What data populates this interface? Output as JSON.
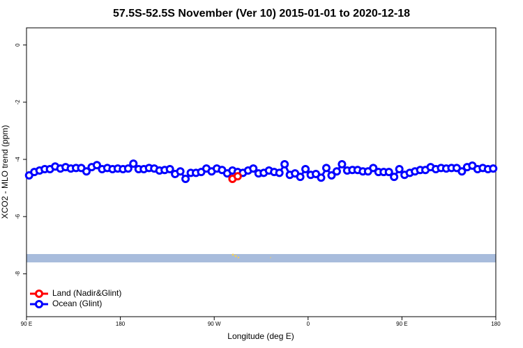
{
  "chart_data": {
    "type": "line",
    "title": "57.5S-52.5S November (Ver 10)   2015-01-01 to 2020-12-18",
    "x_label": "Longitude (deg E)",
    "y_label": "XCO2 - MLO trend (ppm)",
    "xlim": [
      90,
      540
    ],
    "ylim": [
      -9.5,
      0.6
    ],
    "xticks": [
      {
        "value": 90,
        "label": "90 E"
      },
      180,
      {
        "value": 270,
        "label": "90 W"
      },
      {
        "value": 360,
        "label": "0"
      },
      {
        "value": 450,
        "label": "90 E"
      },
      {
        "value": 540,
        "label": "180"
      }
    ],
    "yticks": [
      0,
      -2,
      -4,
      -6,
      -8
    ],
    "legend": "bottom-left",
    "series": [
      {
        "name": "Land (Nadir&Glint)",
        "color": "#ff0000",
        "x": [
          287.5,
          292.5
        ],
        "values": [
          -4.68,
          -4.59
        ]
      },
      {
        "name": "Ocean (Glint)",
        "color": "#0000ff",
        "x": [
          92.5,
          97.5,
          102.5,
          107.5,
          112.5,
          117.5,
          122.5,
          127.5,
          132.5,
          137.5,
          142.5,
          147.5,
          152.5,
          157.5,
          162.5,
          167.5,
          172.5,
          177.5,
          182.5,
          187.5,
          192.5,
          197.5,
          202.5,
          207.5,
          212.5,
          217.5,
          222.5,
          227.5,
          232.5,
          237.5,
          242.5,
          247.5,
          252.5,
          257.5,
          262.5,
          267.5,
          272.5,
          277.5,
          282.5,
          287.5,
          292.5,
          297.5,
          302.5,
          307.5,
          312.5,
          317.5,
          322.5,
          327.5,
          332.5,
          337.5,
          342.5,
          347.5,
          352.5,
          357.5,
          362.5,
          367.5,
          372.5,
          377.5,
          382.5,
          387.5,
          392.5,
          397.5,
          402.5,
          407.5,
          412.5,
          417.5,
          422.5,
          427.5,
          432.5,
          437.5,
          442.5,
          447.5,
          452.5,
          457.5,
          462.5,
          467.5,
          472.5,
          477.5,
          482.5,
          487.5,
          492.5,
          497.5,
          502.5,
          507.5,
          512.5,
          517.5,
          522.5,
          527.5,
          532.5,
          537.5
        ],
        "values": [
          -4.56,
          -4.44,
          -4.39,
          -4.34,
          -4.34,
          -4.25,
          -4.32,
          -4.27,
          -4.32,
          -4.3,
          -4.3,
          -4.42,
          -4.27,
          -4.2,
          -4.34,
          -4.3,
          -4.34,
          -4.32,
          -4.34,
          -4.32,
          -4.15,
          -4.34,
          -4.34,
          -4.3,
          -4.32,
          -4.39,
          -4.37,
          -4.34,
          -4.51,
          -4.42,
          -4.68,
          -4.47,
          -4.47,
          -4.44,
          -4.32,
          -4.42,
          -4.32,
          -4.37,
          -4.49,
          -4.39,
          -4.44,
          -4.47,
          -4.39,
          -4.32,
          -4.49,
          -4.47,
          -4.39,
          -4.44,
          -4.47,
          -4.17,
          -4.54,
          -4.49,
          -4.61,
          -4.34,
          -4.54,
          -4.51,
          -4.64,
          -4.3,
          -4.56,
          -4.42,
          -4.17,
          -4.39,
          -4.37,
          -4.37,
          -4.42,
          -4.42,
          -4.3,
          -4.44,
          -4.44,
          -4.44,
          -4.61,
          -4.34,
          -4.54,
          -4.47,
          -4.42,
          -4.37,
          -4.37,
          -4.27,
          -4.34,
          -4.3,
          -4.32,
          -4.3,
          -4.3,
          -4.42,
          -4.27,
          -4.22,
          -4.34,
          -4.3,
          -4.34,
          -4.32
        ]
      }
    ]
  }
}
